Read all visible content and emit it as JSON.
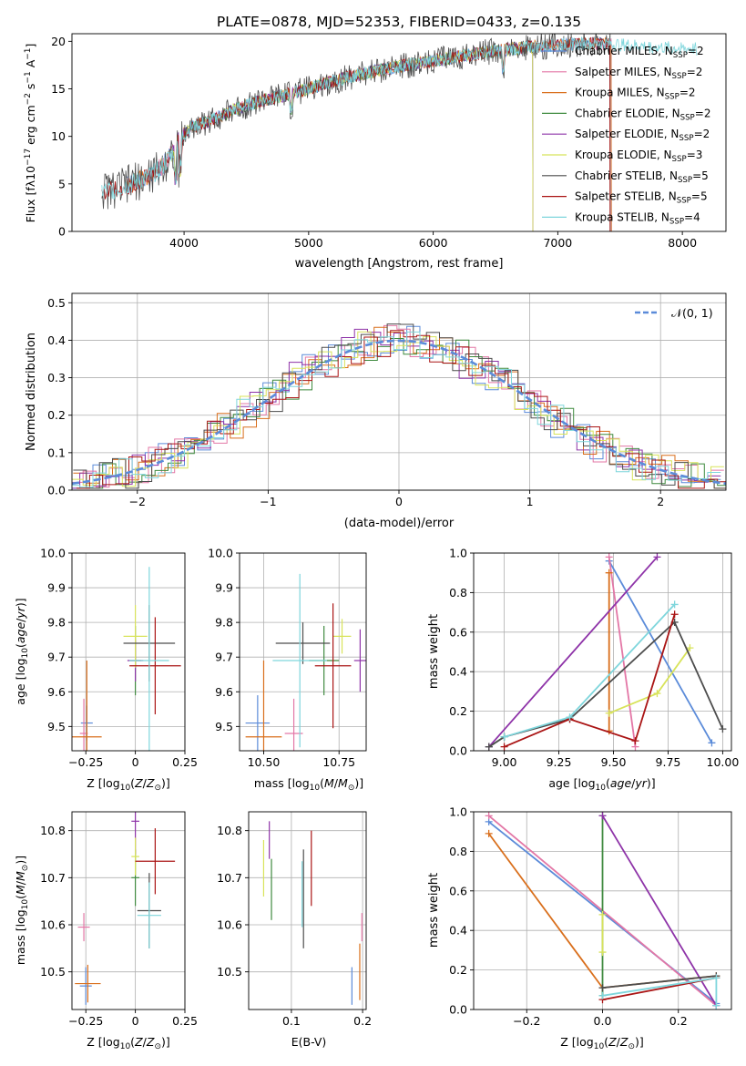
{
  "figure_title": "PLATE=0878, MJD=52353, FIBERID=0433, z=0.135",
  "colors": {
    "Chabrier MILES": "#5b8bd9",
    "Salpeter MILES": "#e377a6",
    "Kroupa MILES": "#d96f1c",
    "Chabrier ELODIE": "#3f8a3f",
    "Salpeter ELODIE": "#8e33a8",
    "Kroupa ELODIE": "#d8e35a",
    "Chabrier STELIB": "#4d4d4d",
    "Salpeter STELIB": "#aa1414",
    "Kroupa STELIB": "#7fd6dc",
    "normal": "#5b8bd9"
  },
  "chart_data": [
    {
      "id": "spectrum",
      "type": "line",
      "xlabel": "wavelength [Angstrom, rest frame]",
      "ylabel": "Flux [f_λ10^-17 erg cm^-2 s^-1 A^-1]",
      "xlim": [
        3100,
        8350
      ],
      "ylim": [
        0,
        20.8
      ],
      "xticks": [
        4000,
        5000,
        6000,
        7000,
        8000
      ],
      "yticks": [
        0,
        5,
        10,
        15,
        20
      ],
      "grid": false,
      "legend_position": "top-right",
      "legend": [
        {
          "model": "Chabrier MILES",
          "label": "Chabrier MILES, N",
          "sub": "SSP",
          "tail": "=2"
        },
        {
          "model": "Salpeter MILES",
          "label": "Salpeter MILES, N",
          "sub": "SSP",
          "tail": "=2"
        },
        {
          "model": "Kroupa MILES",
          "label": "Kroupa MILES, N",
          "sub": "SSP",
          "tail": "=2"
        },
        {
          "model": "Chabrier ELODIE",
          "label": "Chabrier ELODIE, N",
          "sub": "SSP",
          "tail": "=2"
        },
        {
          "model": "Salpeter ELODIE",
          "label": "Salpeter ELODIE, N",
          "sub": "SSP",
          "tail": "=2"
        },
        {
          "model": "Kroupa ELODIE",
          "label": "Kroupa ELODIE, N",
          "sub": "SSP",
          "tail": "=3"
        },
        {
          "model": "Chabrier STELIB",
          "label": "Chabrier STELIB, N",
          "sub": "SSP",
          "tail": "=5"
        },
        {
          "model": "Salpeter STELIB",
          "label": "Salpeter STELIB, N",
          "sub": "SSP",
          "tail": "=5"
        },
        {
          "model": "Kroupa STELIB",
          "label": "Kroupa STELIB, N",
          "sub": "SSP",
          "tail": "=4"
        }
      ],
      "continuum": {
        "x": [
          3340,
          3450,
          3550,
          3650,
          3750,
          3850,
          3950,
          4050,
          4200,
          4400,
          4600,
          4800,
          5000,
          5200,
          5500,
          5800,
          6100,
          6400,
          6700,
          7000,
          7300,
          7600,
          7900,
          8120
        ],
        "y": [
          4.3,
          4.4,
          4.9,
          5.4,
          6.0,
          7.2,
          9.3,
          10.9,
          11.6,
          12.8,
          13.7,
          14.3,
          15.0,
          15.8,
          16.8,
          17.5,
          18.2,
          18.8,
          19.3,
          19.6,
          19.8,
          19.6,
          19.3,
          19.2
        ]
      },
      "model_spans": {
        "Chabrier MILES": [
          3540,
          7430
        ],
        "Salpeter MILES": [
          3540,
          7430
        ],
        "Kroupa MILES": [
          3540,
          7430
        ],
        "Chabrier ELODIE": [
          3900,
          6800
        ],
        "Salpeter ELODIE": [
          3900,
          6800
        ],
        "Kroupa ELODIE": [
          3900,
          6800
        ],
        "Chabrier STELIB": [
          3340,
          7420
        ],
        "Salpeter STELIB": [
          3340,
          7420
        ],
        "Kroupa STELIB": [
          3340,
          8120
        ]
      }
    },
    {
      "id": "residuals",
      "type": "bar",
      "xlabel": "(data-model)/error",
      "ylabel": "Normed distribution",
      "xlim": [
        -2.5,
        2.5
      ],
      "ylim": [
        0,
        0.525
      ],
      "xticks": [
        -2,
        -1,
        0,
        1,
        2
      ],
      "yticks": [
        0.0,
        0.1,
        0.2,
        0.3,
        0.4,
        0.5
      ],
      "grid": true,
      "legend_position": "top-right",
      "legend": [
        {
          "label": "𝒩(0, 1)",
          "style": "dashed"
        }
      ],
      "bin_width": 0.1,
      "histogram_of": "normal distribution N(0,1), one step histogram per model"
    },
    {
      "id": "age_vs_Z",
      "type": "scatter",
      "xlabel": "Z [log10(Z/Z⊙)]",
      "ylabel": "age  [log10(age/yr)]",
      "xlim": [
        -0.32,
        0.25
      ],
      "ylim": [
        9.43,
        10.0
      ],
      "xticks": [
        -0.25,
        0.0,
        0.25
      ],
      "yticks": [
        9.5,
        9.6,
        9.7,
        9.8,
        9.9,
        10.0
      ],
      "grid": true,
      "points": [
        {
          "model": "Chabrier MILES",
          "x": -0.245,
          "y": 9.51,
          "xerr": 0.03,
          "yerr": 0.05
        },
        {
          "model": "Salpeter MILES",
          "x": -0.26,
          "y": 9.48,
          "xerr": 0.02,
          "yerr": 0.1
        },
        {
          "model": "Kroupa MILES",
          "x": -0.245,
          "y": 9.47,
          "xerr": 0.075,
          "yerr": 0.22
        },
        {
          "model": "Chabrier ELODIE",
          "x": 0.0,
          "y": 9.69,
          "xerr": 0.03,
          "yerr": 0.1
        },
        {
          "model": "Salpeter ELODIE",
          "x": 0.0,
          "y": 9.69,
          "xerr": 0.04,
          "yerr": 0.06
        },
        {
          "model": "Kroupa ELODIE",
          "x": 0.0,
          "y": 9.76,
          "xerr": 0.06,
          "yerr": 0.09
        },
        {
          "model": "Chabrier STELIB",
          "x": 0.07,
          "y": 9.74,
          "xerr": 0.13,
          "yerr": 0.11
        },
        {
          "model": "Salpeter STELIB",
          "x": 0.1,
          "y": 9.675,
          "xerr": 0.13,
          "yerr": 0.14
        },
        {
          "model": "Kroupa STELIB",
          "x": 0.07,
          "y": 9.69,
          "xerr": 0.1,
          "yerr": 0.27
        }
      ]
    },
    {
      "id": "age_vs_mass",
      "type": "scatter",
      "xlabel": "mass [log10(M/M⊙)]",
      "ylabel": "",
      "xlim": [
        10.42,
        10.84
      ],
      "ylim": [
        9.43,
        10.0
      ],
      "xticks": [
        10.5,
        10.75
      ],
      "tick_labels": [
        "10.50",
        "10.75"
      ],
      "yticks": [
        9.5,
        9.6,
        9.7,
        9.8,
        9.9,
        10.0
      ],
      "grid": true,
      "points": [
        {
          "model": "Chabrier MILES",
          "x": 10.48,
          "y": 9.51,
          "xerr": 0.04,
          "yerr": 0.08
        },
        {
          "model": "Salpeter MILES",
          "x": 10.6,
          "y": 9.48,
          "xerr": 0.03,
          "yerr": 0.1
        },
        {
          "model": "Kroupa MILES",
          "x": 10.5,
          "y": 9.47,
          "xerr": 0.06,
          "yerr": 0.22
        },
        {
          "model": "Chabrier ELODIE",
          "x": 10.7,
          "y": 9.69,
          "xerr": 0.05,
          "yerr": 0.1
        },
        {
          "model": "Salpeter ELODIE",
          "x": 10.82,
          "y": 9.69,
          "xerr": 0.02,
          "yerr": 0.09
        },
        {
          "model": "Kroupa ELODIE",
          "x": 10.76,
          "y": 9.76,
          "xerr": 0.03,
          "yerr": 0.05
        },
        {
          "model": "Chabrier STELIB",
          "x": 10.63,
          "y": 9.74,
          "xerr": 0.09,
          "yerr": 0.06
        },
        {
          "model": "Salpeter STELIB",
          "x": 10.73,
          "y": 9.675,
          "xerr": 0.06,
          "yerr": 0.18
        },
        {
          "model": "Kroupa STELIB",
          "x": 10.62,
          "y": 9.69,
          "xerr": 0.09,
          "yerr": 0.25
        }
      ]
    },
    {
      "id": "weight_vs_age",
      "type": "line",
      "xlabel": "age  [log10(age/yr)]",
      "ylabel": "mass weight",
      "xlim": [
        8.86,
        10.04
      ],
      "ylim": [
        0,
        1.0
      ],
      "xticks": [
        9.0,
        9.25,
        9.5,
        9.75,
        10.0
      ],
      "tick_labels": [
        "9.00",
        "9.25",
        "9.50",
        "9.75",
        "10.00"
      ],
      "yticks": [
        0.0,
        0.2,
        0.4,
        0.6,
        0.8,
        1.0
      ],
      "grid": true,
      "series": [
        {
          "model": "Chabrier MILES",
          "x": [
            9.48,
            9.95
          ],
          "y": [
            0.96,
            0.04
          ]
        },
        {
          "model": "Salpeter MILES",
          "x": [
            9.48,
            9.6
          ],
          "y": [
            0.98,
            0.02
          ]
        },
        {
          "model": "Kroupa MILES",
          "x": [
            9.48,
            9.48
          ],
          "y": [
            0.9,
            0.1
          ]
        },
        {
          "model": "Chabrier ELODIE",
          "x": [
            8.93,
            9.0
          ],
          "y": [
            0.02,
            0.07
          ]
        },
        {
          "model": "Salpeter ELODIE",
          "x": [
            8.93,
            9.7
          ],
          "y": [
            0.02,
            0.98
          ]
        },
        {
          "model": "Kroupa ELODIE",
          "x": [
            9.48,
            9.7,
            9.85
          ],
          "y": [
            0.19,
            0.29,
            0.52
          ]
        },
        {
          "model": "Chabrier STELIB",
          "x": [
            8.93,
            9.0,
            9.3,
            9.78,
            10.0
          ],
          "y": [
            0.02,
            0.07,
            0.16,
            0.65,
            0.11
          ]
        },
        {
          "model": "Salpeter STELIB",
          "x": [
            9.0,
            9.3,
            9.6,
            9.78
          ],
          "y": [
            0.02,
            0.16,
            0.05,
            0.69
          ]
        },
        {
          "model": "Kroupa STELIB",
          "x": [
            9.0,
            9.3,
            9.78
          ],
          "y": [
            0.07,
            0.17,
            0.74
          ]
        }
      ]
    },
    {
      "id": "mass_vs_Z",
      "type": "scatter",
      "xlabel": "Z [log10(Z/Z⊙)]",
      "ylabel": "mass [log10(M/M⊙)]",
      "xlim": [
        -0.32,
        0.25
      ],
      "ylim": [
        10.42,
        10.84
      ],
      "xticks": [
        -0.25,
        0.0,
        0.25
      ],
      "yticks": [
        10.5,
        10.6,
        10.7,
        10.8
      ],
      "grid": true,
      "points": [
        {
          "model": "Chabrier MILES",
          "x": -0.25,
          "y": 10.47,
          "xerr": 0.03,
          "yerr": 0.04
        },
        {
          "model": "Salpeter MILES",
          "x": -0.26,
          "y": 10.595,
          "xerr": 0.03,
          "yerr": 0.03
        },
        {
          "model": "Kroupa MILES",
          "x": -0.24,
          "y": 10.475,
          "xerr": 0.065,
          "yerr": 0.04
        },
        {
          "model": "Chabrier ELODIE",
          "x": 0.0,
          "y": 10.7,
          "xerr": 0.02,
          "yerr": 0.06
        },
        {
          "model": "Salpeter ELODIE",
          "x": 0.0,
          "y": 10.82,
          "xerr": 0.02,
          "yerr": 0.07
        },
        {
          "model": "Kroupa ELODIE",
          "x": 0.0,
          "y": 10.745,
          "xerr": 0.02,
          "yerr": 0.04
        },
        {
          "model": "Chabrier STELIB",
          "x": 0.07,
          "y": 10.63,
          "xerr": 0.06,
          "yerr": 0.08
        },
        {
          "model": "Salpeter STELIB",
          "x": 0.1,
          "y": 10.735,
          "xerr": 0.1,
          "yerr": 0.07
        },
        {
          "model": "Kroupa STELIB",
          "x": 0.07,
          "y": 10.62,
          "xerr": 0.06,
          "yerr": 0.07
        }
      ]
    },
    {
      "id": "mass_vs_ebv",
      "type": "scatter",
      "xlabel": "E(B-V)",
      "ylabel": "",
      "xlim": [
        0.04,
        0.205
      ],
      "ylim": [
        10.42,
        10.84
      ],
      "xticks": [
        0.1,
        0.2
      ],
      "yticks": [
        10.5,
        10.6,
        10.7,
        10.8
      ],
      "grid": true,
      "points": [
        {
          "model": "Chabrier MILES",
          "x": 0.185,
          "y": 10.47,
          "xerr": 0.0,
          "yerr": 0.04
        },
        {
          "model": "Salpeter MILES",
          "x": 0.199,
          "y": 10.595,
          "xerr": 0.0,
          "yerr": 0.03
        },
        {
          "model": "Kroupa MILES",
          "x": 0.196,
          "y": 10.5,
          "xerr": 0.0,
          "yerr": 0.06
        },
        {
          "model": "Chabrier ELODIE",
          "x": 0.072,
          "y": 10.675,
          "xerr": 0.0,
          "yerr": 0.065
        },
        {
          "model": "Salpeter ELODIE",
          "x": 0.069,
          "y": 10.78,
          "xerr": 0.0,
          "yerr": 0.04
        },
        {
          "model": "Kroupa ELODIE",
          "x": 0.061,
          "y": 10.72,
          "xerr": 0.0,
          "yerr": 0.06
        },
        {
          "model": "Chabrier STELIB",
          "x": 0.117,
          "y": 10.655,
          "xerr": 0.0,
          "yerr": 0.105
        },
        {
          "model": "Salpeter STELIB",
          "x": 0.128,
          "y": 10.72,
          "xerr": 0.0,
          "yerr": 0.08
        },
        {
          "model": "Kroupa STELIB",
          "x": 0.115,
          "y": 10.665,
          "xerr": 0.0,
          "yerr": 0.07
        }
      ]
    },
    {
      "id": "weight_vs_Z",
      "type": "line",
      "xlabel": "Z [log10(Z/Z⊙)]",
      "ylabel": "mass weight",
      "xlim": [
        -0.34,
        0.34
      ],
      "ylim": [
        0,
        1.0
      ],
      "xticks": [
        -0.2,
        0.0,
        0.2
      ],
      "yticks": [
        0.0,
        0.2,
        0.4,
        0.6,
        0.8,
        1.0
      ],
      "grid": true,
      "series": [
        {
          "model": "Chabrier MILES",
          "x": [
            -0.3,
            0.3
          ],
          "y": [
            0.95,
            0.03
          ]
        },
        {
          "model": "Salpeter MILES",
          "x": [
            -0.3,
            0.3
          ],
          "y": [
            0.98,
            0.02
          ]
        },
        {
          "model": "Kroupa MILES",
          "x": [
            -0.3,
            0.0,
            0.3
          ],
          "y": [
            0.89,
            0.11,
            0.17
          ]
        },
        {
          "model": "Chabrier ELODIE",
          "x": [
            0.0,
            0.0
          ],
          "y": [
            0.98,
            0.07
          ]
        },
        {
          "model": "Salpeter ELODIE",
          "x": [
            0.0,
            0.3
          ],
          "y": [
            0.98,
            0.02
          ]
        },
        {
          "model": "Kroupa ELODIE",
          "x": [
            0.0,
            0.0
          ],
          "y": [
            0.48,
            0.29
          ]
        },
        {
          "model": "Chabrier STELIB",
          "x": [
            0.0,
            0.3
          ],
          "y": [
            0.11,
            0.17
          ]
        },
        {
          "model": "Salpeter STELIB",
          "x": [
            0.0,
            0.3
          ],
          "y": [
            0.05,
            0.16
          ]
        },
        {
          "model": "Kroupa STELIB",
          "x": [
            0.0,
            0.3,
            0.3
          ],
          "y": [
            0.07,
            0.16,
            0.02
          ]
        }
      ]
    }
  ]
}
